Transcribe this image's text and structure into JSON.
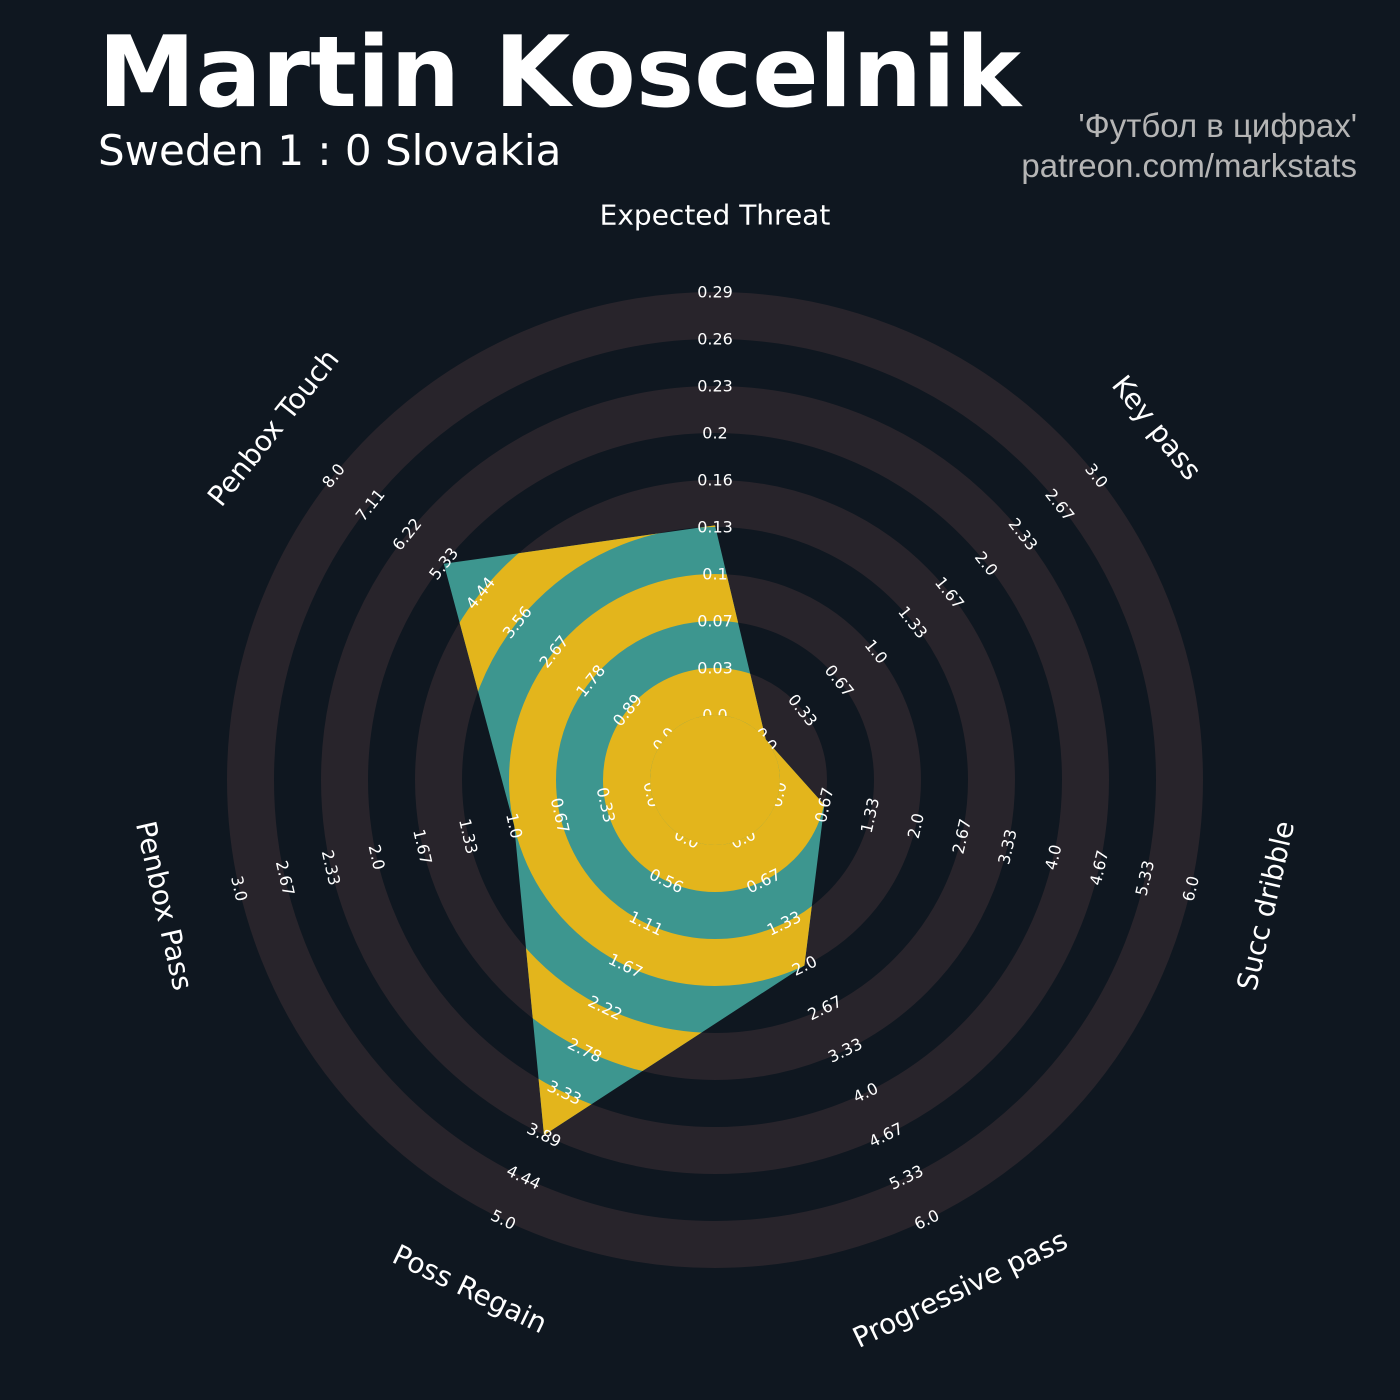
{
  "header": {
    "player_name": "Martin Koscelnik",
    "match": "Sweden 1 : 0 Slovakia",
    "credit_line1": "'Футбол в цифрах'",
    "credit_line2": "patreon.com/markstats"
  },
  "colors": {
    "background": "#0f1720",
    "ring_band": "#28242b",
    "fill_teal": "#3d968f",
    "fill_yellow": "#e3b51c",
    "label": "#ffffff",
    "credits": "#b5b5b5"
  },
  "chart_data": {
    "type": "radar",
    "title": "Martin Koscelnik",
    "params": [
      {
        "name": "Expected Threat",
        "min": 0.0,
        "max": 0.29,
        "ticks": [
          "0.0",
          "0.03",
          "0.07",
          "0.1",
          "0.13",
          "0.16",
          "0.2",
          "0.23",
          "0.26",
          "0.29"
        ],
        "value": 0.13
      },
      {
        "name": "Key pass",
        "min": 0.0,
        "max": 3.0,
        "ticks": [
          "0.0",
          "0.33",
          "0.67",
          "1.0",
          "1.33",
          "1.67",
          "2.0",
          "2.33",
          "2.67",
          "3.0"
        ],
        "value": 0.0
      },
      {
        "name": "Succ dribble",
        "min": 0.0,
        "max": 6.0,
        "ticks": [
          "0.0",
          "0.67",
          "1.33",
          "2.0",
          "2.67",
          "3.33",
          "4.0",
          "4.67",
          "5.33",
          "6.0"
        ],
        "value": 0.67
      },
      {
        "name": "Progressive pass",
        "min": 0.0,
        "max": 6.0,
        "ticks": [
          "0.0",
          "0.67",
          "1.33",
          "2.0",
          "2.67",
          "3.33",
          "4.0",
          "4.67",
          "5.33",
          "6.0"
        ],
        "value": 2.0
      },
      {
        "name": "Poss Regain",
        "min": 0.0,
        "max": 5.0,
        "ticks": [
          "0.0",
          "0.56",
          "1.11",
          "1.67",
          "2.22",
          "2.78",
          "3.33",
          "3.89",
          "4.44",
          "5.0"
        ],
        "value": 3.89
      },
      {
        "name": "Penbox Pass",
        "min": 0.0,
        "max": 3.0,
        "ticks": [
          "0.0",
          "0.33",
          "0.67",
          "1.0",
          "1.33",
          "1.67",
          "2.0",
          "2.33",
          "2.67",
          "3.0"
        ],
        "value": 1.0
      },
      {
        "name": "Penbox Touch",
        "min": 0.0,
        "max": 8.0,
        "ticks": [
          "0.0",
          "0.89",
          "1.78",
          "2.67",
          "3.56",
          "4.44",
          "5.33",
          "6.22",
          "7.11",
          "8.0"
        ],
        "value": 5.33
      }
    ]
  }
}
